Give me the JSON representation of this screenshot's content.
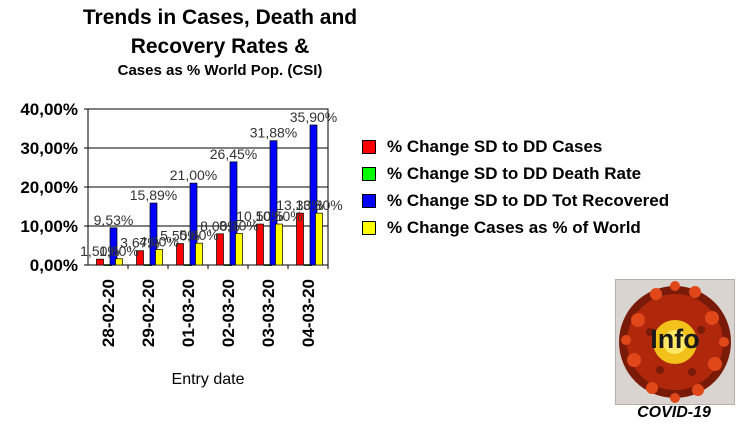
{
  "title_lines": [
    "Trends in Cases, Death and",
    "Recovery Rates &",
    "Cases as % World Pop. (CSI)"
  ],
  "badge": {
    "text": "Info",
    "label": "COVID-19",
    "icon": "virus-icon"
  },
  "chart_data": {
    "type": "bar",
    "xlabel": "Entry date",
    "ylabel": "",
    "ylim": [
      0,
      40
    ],
    "yticks": [
      "0,00%",
      "10,00%",
      "20,00%",
      "30,00%",
      "40,00%"
    ],
    "grid": true,
    "legend_position": "right",
    "categories": [
      "28-02-20",
      "29-02-20",
      "01-03-20",
      "02-03-20",
      "03-03-20",
      "04-03-20"
    ],
    "series": [
      {
        "name": "% Change SD to DD Cases",
        "color": "#ff0000",
        "values": [
          1.5,
          3.67,
          5.5,
          8.0,
          10.5,
          13.3
        ],
        "labels": [
          "1,50%",
          "3,67%",
          "5,50%",
          "8,00%",
          "10,50%",
          "13,30%"
        ]
      },
      {
        "name": "% Change SD to DD Death Rate",
        "color": "#00ff00",
        "values": [
          0.1,
          0.1,
          0.1,
          0.1,
          0.1,
          0.1
        ],
        "labels": [
          "",
          "",
          "",
          "",
          "",
          ""
        ]
      },
      {
        "name": "% Change SD to DD Tot Recovered",
        "color": "#0000ff",
        "values": [
          9.53,
          15.89,
          21.0,
          26.45,
          31.88,
          35.9
        ],
        "labels": [
          "9,53%",
          "15,89%",
          "21,00%",
          "26,45%",
          "31,88%",
          "35,90%"
        ]
      },
      {
        "name": "% Change Cases as % of World",
        "color": "#ffff00",
        "values": [
          1.6,
          4.0,
          5.6,
          8.1,
          10.5,
          13.3
        ],
        "labels": [
          "1,60%",
          "4,00%",
          "5,60%",
          "8,10%",
          "10,50%",
          "13,30%"
        ]
      }
    ]
  }
}
